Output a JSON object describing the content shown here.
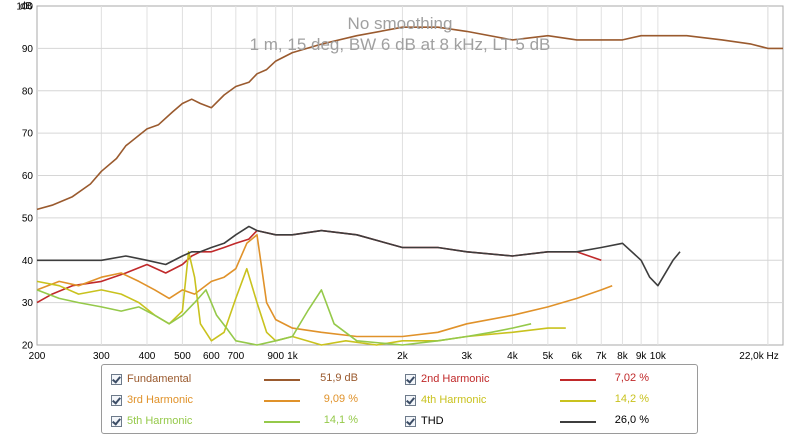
{
  "chart_data": {
    "type": "line",
    "title": "No smoothing",
    "subtitle": "1 m, 15 deg, BW 6 dB at 8 kHz, LT 5 dB",
    "ylabel": "dB",
    "xlabel": "",
    "x_scale": "log",
    "xlim": [
      200,
      22000
    ],
    "ylim": [
      20,
      100
    ],
    "yticks": [
      20,
      30,
      40,
      50,
      60,
      70,
      80,
      90,
      100
    ],
    "xticks": [
      {
        "v": 200,
        "label": "200"
      },
      {
        "v": 300,
        "label": "300"
      },
      {
        "v": 400,
        "label": "400"
      },
      {
        "v": 500,
        "label": "500"
      },
      {
        "v": 600,
        "label": "600"
      },
      {
        "v": 700,
        "label": "700"
      },
      {
        "v": 900,
        "label": "900"
      },
      {
        "v": 1000,
        "label": "1k"
      },
      {
        "v": 2000,
        "label": "2k"
      },
      {
        "v": 3000,
        "label": "3k"
      },
      {
        "v": 4000,
        "label": "4k"
      },
      {
        "v": 5000,
        "label": "5k"
      },
      {
        "v": 6000,
        "label": "6k"
      },
      {
        "v": 7000,
        "label": "7k"
      },
      {
        "v": 8000,
        "label": "8k"
      },
      {
        "v": 9000,
        "label": "9k"
      },
      {
        "v": 10000,
        "label": "10k"
      },
      {
        "v": 22000,
        "label": "22,0k Hz"
      }
    ],
    "grid": true,
    "series": [
      {
        "name": "Fundamental",
        "color": "#9a5a2e",
        "x": [
          200,
          220,
          250,
          280,
          300,
          330,
          350,
          400,
          430,
          470,
          500,
          530,
          560,
          600,
          650,
          700,
          760,
          800,
          850,
          900,
          1000,
          1200,
          1500,
          2000,
          2500,
          3000,
          4000,
          5000,
          6000,
          7000,
          8000,
          9000,
          10000,
          11000,
          12000,
          15000,
          18000,
          20000,
          22000
        ],
        "y": [
          52,
          53,
          55,
          58,
          61,
          64,
          67,
          71,
          72,
          75,
          77,
          78,
          77,
          76,
          79,
          81,
          82,
          84,
          85,
          87,
          89,
          91,
          93,
          95,
          95,
          94,
          92,
          93,
          92,
          92,
          92,
          93,
          93,
          93,
          93,
          92,
          91,
          90,
          90
        ]
      },
      {
        "name": "2nd Harmonic",
        "color": "#c0292a",
        "x": [
          200,
          220,
          250,
          300,
          350,
          400,
          450,
          500,
          530,
          560,
          600,
          650,
          700,
          760,
          800,
          900,
          1000,
          1200,
          1500,
          2000,
          2500,
          3000,
          4000,
          5000,
          6000,
          7000
        ],
        "y": [
          30,
          32,
          34,
          35,
          37,
          39,
          37,
          39,
          41,
          42,
          42,
          43,
          44,
          45,
          47,
          46,
          46,
          47,
          46,
          43,
          43,
          42,
          41,
          42,
          42,
          40
        ]
      },
      {
        "name": "3rd Harmonic",
        "color": "#e0922a",
        "x": [
          200,
          230,
          260,
          300,
          340,
          380,
          420,
          460,
          500,
          540,
          600,
          650,
          700,
          750,
          800,
          850,
          900,
          1000,
          1200,
          1500,
          2000,
          2500,
          3000,
          4000,
          5000,
          6000,
          7000,
          7500
        ],
        "y": [
          33,
          35,
          34,
          36,
          37,
          35,
          33,
          31,
          33,
          32,
          35,
          36,
          38,
          44,
          46,
          30,
          26,
          24,
          23,
          22,
          22,
          23,
          25,
          27,
          29,
          31,
          33,
          34
        ]
      },
      {
        "name": "4th Harmonic",
        "color": "#c9c21e",
        "x": [
          200,
          230,
          260,
          300,
          340,
          380,
          420,
          460,
          500,
          520,
          540,
          560,
          600,
          650,
          700,
          750,
          800,
          850,
          900,
          1000,
          1200,
          1400,
          1700,
          2000,
          2500,
          3000,
          4000,
          5000,
          5600
        ],
        "y": [
          35,
          34,
          32,
          33,
          32,
          30,
          27,
          25,
          28,
          42,
          36,
          25,
          21,
          23,
          31,
          38,
          30,
          23,
          21,
          22,
          20,
          21,
          20,
          21,
          21,
          22,
          23,
          24,
          24
        ]
      },
      {
        "name": "5th Harmonic",
        "color": "#95c94a",
        "x": [
          200,
          230,
          260,
          300,
          340,
          380,
          420,
          460,
          500,
          540,
          580,
          620,
          660,
          700,
          800,
          900,
          1000,
          1100,
          1200,
          1300,
          1500,
          2000,
          2500,
          3000,
          3500,
          4000,
          4500
        ],
        "y": [
          33,
          31,
          30,
          29,
          28,
          29,
          27,
          25,
          27,
          30,
          33,
          27,
          24,
          21,
          20,
          21,
          22,
          28,
          33,
          25,
          21,
          20,
          21,
          22,
          23,
          24,
          25
        ]
      },
      {
        "name": "THD",
        "color": "#3d3d3d",
        "x": [
          200,
          220,
          250,
          300,
          350,
          400,
          450,
          500,
          530,
          560,
          600,
          650,
          700,
          760,
          800,
          900,
          1000,
          1200,
          1500,
          2000,
          2500,
          3000,
          4000,
          5000,
          6000,
          7000,
          8000,
          9000,
          9500,
          10000,
          11000,
          11500
        ],
        "y": [
          40,
          40,
          40,
          40,
          41,
          40,
          39,
          41,
          42,
          42,
          43,
          44,
          46,
          48,
          47,
          46,
          46,
          47,
          46,
          43,
          43,
          42,
          41,
          42,
          42,
          43,
          44,
          40,
          36,
          34,
          40,
          42
        ]
      }
    ]
  },
  "legend": {
    "items": [
      {
        "label": "Fundamental",
        "value": "51,9 dB",
        "color": "#9a5a2e"
      },
      {
        "label": "2nd Harmonic",
        "value": "7,02 %",
        "color": "#c0292a"
      },
      {
        "label": "3rd Harmonic",
        "value": "9,09 %",
        "color": "#e0922a"
      },
      {
        "label": "4th Harmonic",
        "value": "14,2 %",
        "color": "#c9c21e"
      },
      {
        "label": "5th Harmonic",
        "value": "14,1 %",
        "color": "#95c94a"
      },
      {
        "label": "THD",
        "value": "26,0 %",
        "color": "#3d3d3d"
      }
    ]
  }
}
